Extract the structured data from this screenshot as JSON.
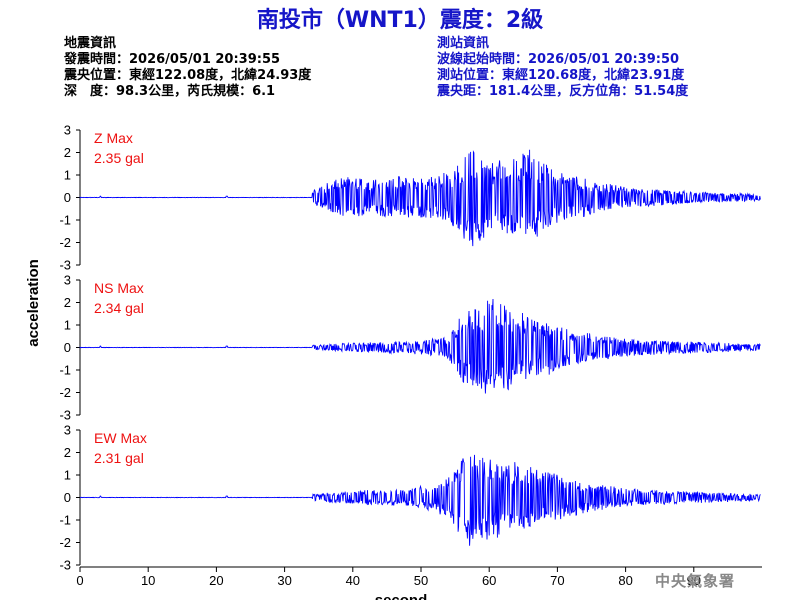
{
  "title": "南投市（WNT1）震度：2級",
  "quake_info": {
    "heading": "地震資訊",
    "origin_time": "發震時間：2026/05/01 20:39:55",
    "epicenter": "震央位置：東經122.08度，北緯24.93度",
    "depth_magnitude": "深　度：98.3公里，芮氏規模：6.1"
  },
  "station_info": {
    "heading": "測站資訊",
    "wave_start": "波線起始時間：2026/05/01 20:39:50",
    "location": "測站位置：東經120.68度，北緯23.91度",
    "distance_azimuth": "震央距：181.4公里，反方位角：51.54度"
  },
  "agency": "中央氣象署",
  "chart_data": {
    "type": "line",
    "xlabel": "second",
    "ylabel": "acceleration",
    "xlim": [
      0,
      100
    ],
    "x_ticks": [
      0,
      10,
      20,
      30,
      40,
      50,
      60,
      70,
      80,
      90
    ],
    "ylim": [
      -3,
      3
    ],
    "y_ticks": [
      3,
      2,
      1,
      0,
      -1,
      -2,
      -3
    ],
    "line_color": "#0000ff",
    "label_color": "#ee1111",
    "grid": false,
    "panels": [
      {
        "component": "Z",
        "label": "Z Max",
        "max_label": "2.35 gal",
        "max": 2.35,
        "onset_s": 34,
        "envelope": [
          [
            34,
            0.3
          ],
          [
            38,
            0.9
          ],
          [
            45,
            0.9
          ],
          [
            52,
            1.0
          ],
          [
            55,
            1.4
          ],
          [
            57,
            2.3
          ],
          [
            60,
            1.6
          ],
          [
            63,
            1.7
          ],
          [
            66,
            2.3
          ],
          [
            68,
            1.5
          ],
          [
            73,
            0.9
          ],
          [
            80,
            0.45
          ],
          [
            90,
            0.25
          ],
          [
            99,
            0.15
          ]
        ]
      },
      {
        "component": "NS",
        "label": "NS Max",
        "max_label": "2.34 gal",
        "max": 2.34,
        "onset_s": 34,
        "envelope": [
          [
            34,
            0.1
          ],
          [
            40,
            0.2
          ],
          [
            50,
            0.3
          ],
          [
            54,
            0.5
          ],
          [
            56,
            1.6
          ],
          [
            58,
            1.9
          ],
          [
            60,
            2.1
          ],
          [
            62,
            2.3
          ],
          [
            64,
            1.6
          ],
          [
            68,
            1.3
          ],
          [
            73,
            0.7
          ],
          [
            80,
            0.4
          ],
          [
            90,
            0.25
          ],
          [
            99,
            0.15
          ]
        ]
      },
      {
        "component": "EW",
        "label": "EW Max",
        "max_label": "2.31 gal",
        "max": 2.31,
        "onset_s": 34,
        "envelope": [
          [
            34,
            0.15
          ],
          [
            40,
            0.3
          ],
          [
            48,
            0.4
          ],
          [
            52,
            0.6
          ],
          [
            55,
            1.3
          ],
          [
            57,
            2.3
          ],
          [
            59,
            1.9
          ],
          [
            61,
            1.8
          ],
          [
            63,
            1.6
          ],
          [
            66,
            1.5
          ],
          [
            70,
            1.0
          ],
          [
            75,
            0.6
          ],
          [
            82,
            0.35
          ],
          [
            90,
            0.25
          ],
          [
            99,
            0.15
          ]
        ]
      }
    ]
  }
}
